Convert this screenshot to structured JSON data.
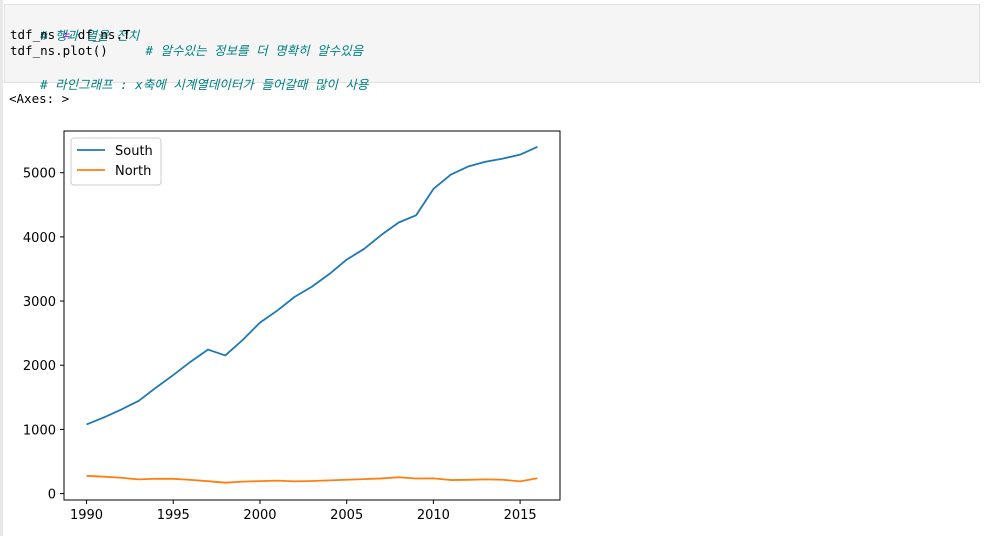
{
  "code": {
    "comment1": "# 행과 열을 전치",
    "line2_var": "tdf_ns",
    "line2_op": "=",
    "line2_expr": "df_ns.T",
    "line3_code": "tdf_ns.plot()",
    "line3_comment": "# 알수있는 정보를 더 명확히 알수있음",
    "comment4": "# 라인그래프 : x축에 시계열데이터가 들어갈때 많이 사용"
  },
  "output": {
    "text": "<Axes: >"
  },
  "chart_data": {
    "type": "line",
    "x": [
      1990,
      1991,
      1992,
      1993,
      1994,
      1995,
      1996,
      1997,
      1998,
      1999,
      2000,
      2001,
      2002,
      2003,
      2004,
      2005,
      2006,
      2007,
      2008,
      2009,
      2010,
      2011,
      2012,
      2013,
      2014,
      2015,
      2016
    ],
    "series": [
      {
        "name": "South",
        "color": "#1f77b4",
        "values": [
          1077,
          1186,
          1310,
          1444,
          1650,
          1847,
          2055,
          2244,
          2153,
          2393,
          2664,
          2852,
          3065,
          3225,
          3421,
          3646,
          3812,
          4031,
          4224,
          4336,
          4747,
          4969,
          5096,
          5171,
          5220,
          5281,
          5404
        ]
      },
      {
        "name": "North",
        "color": "#ff7f0e",
        "values": [
          277,
          263,
          247,
          221,
          231,
          230,
          213,
          193,
          170,
          186,
          194,
          202,
          190,
          196,
          206,
          216,
          225,
          236,
          255,
          235,
          237,
          211,
          215,
          221,
          216,
          190,
          239
        ]
      }
    ],
    "xlim": [
      1988.7,
      2017.3
    ],
    "ylim": [
      -100,
      5650
    ],
    "xticks": [
      "1990",
      "1995",
      "2000",
      "2005",
      "2010",
      "2015"
    ],
    "yticks": [
      "0",
      "1000",
      "2000",
      "3000",
      "4000",
      "5000"
    ],
    "legend": "top-left",
    "grid": false
  }
}
